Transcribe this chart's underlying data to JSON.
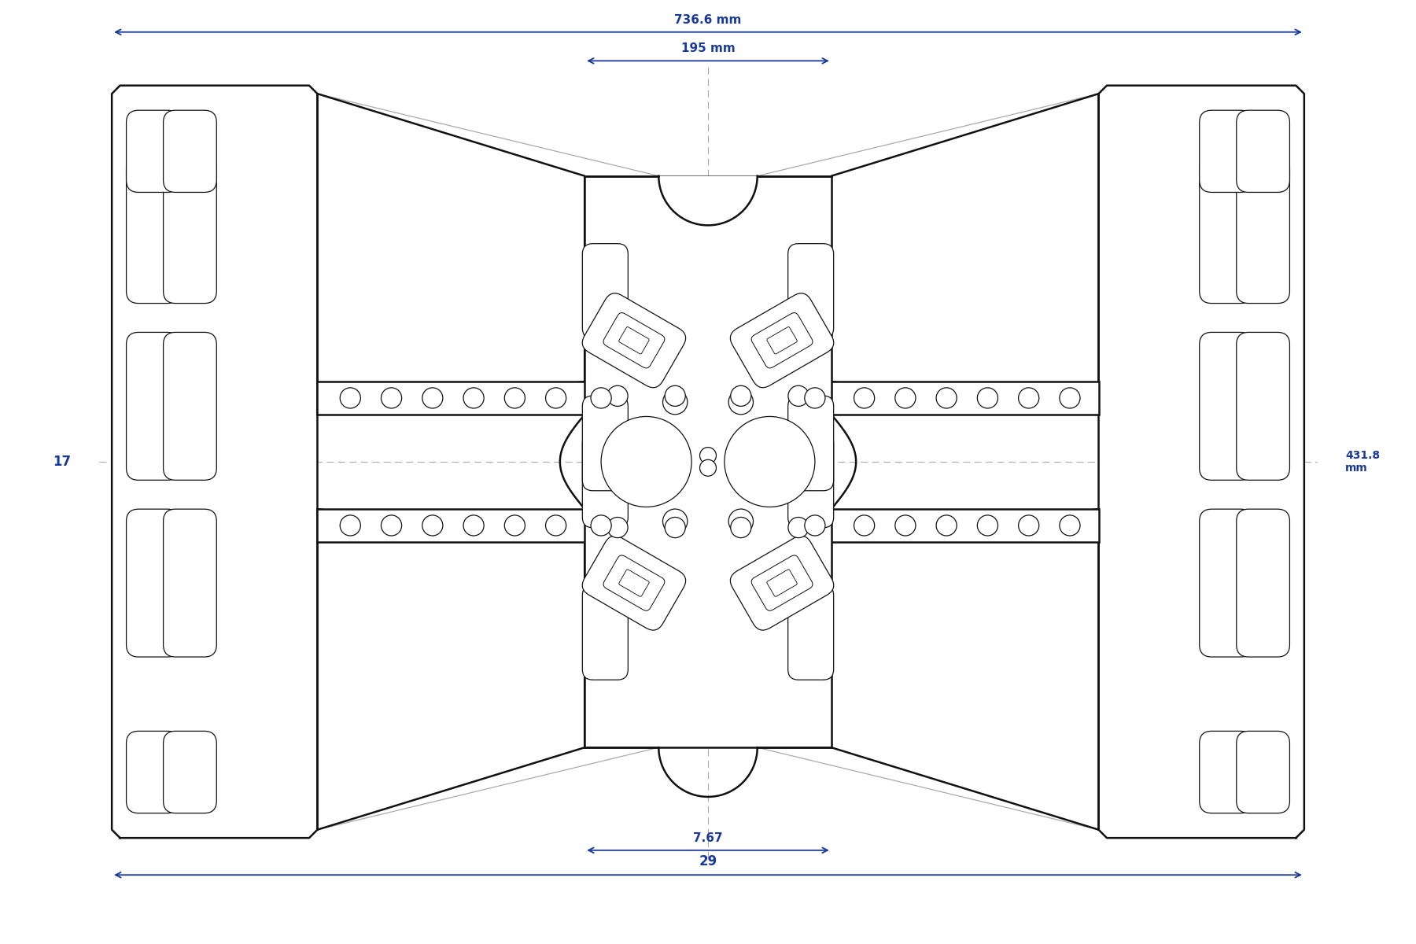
{
  "bg_color": "#ffffff",
  "draw_color": "#111111",
  "ghost_color": "#aaaaaa",
  "dim_color": "#1a3a9a",
  "fig_width": 18.0,
  "fig_height": 12.0,
  "dpi": 100,
  "dim_29": "29",
  "dim_7_67": "7.67",
  "dim_17": "17",
  "dim_431_8": "431.8\nmm",
  "dim_195": "195 mm",
  "dim_736_6": "736.6 mm"
}
